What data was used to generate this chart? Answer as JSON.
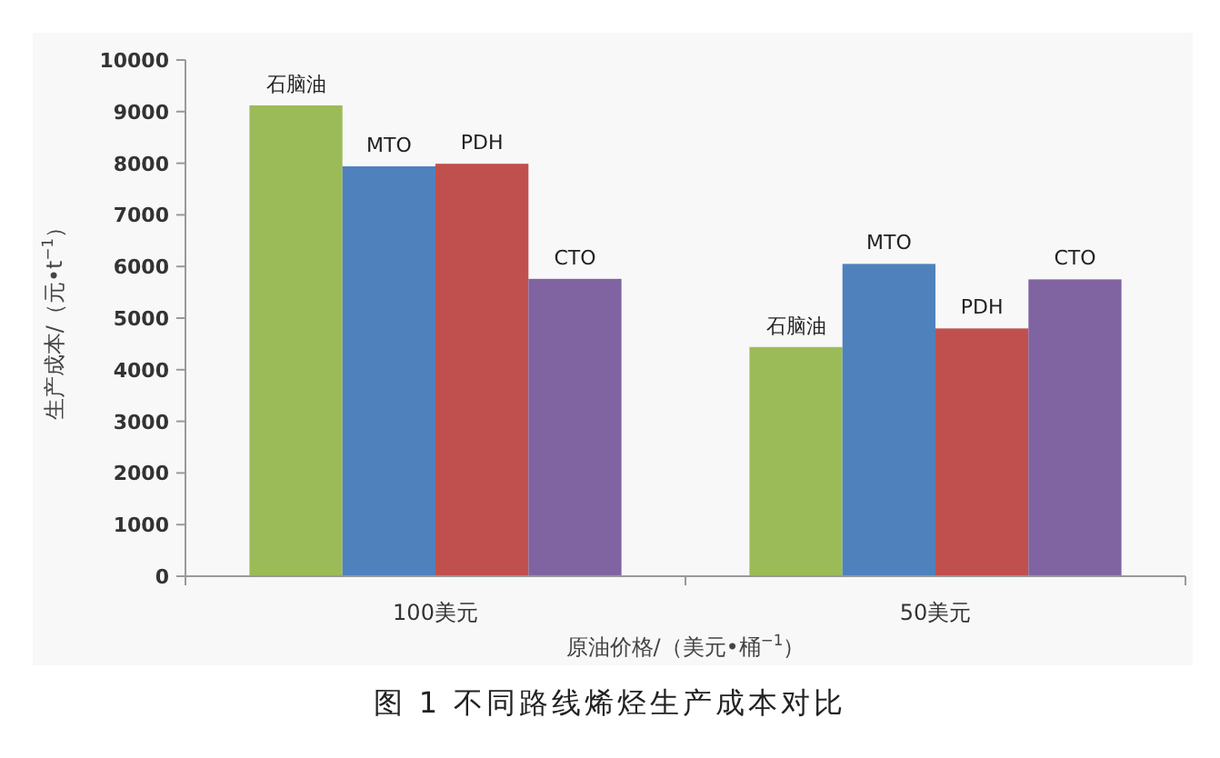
{
  "chart_data": {
    "type": "bar",
    "title": "图 1  不同路线烯烃生产成本对比",
    "xlabel": "原油价格/（美元•桶$^{−1}$）",
    "ylabel": "生产成本/（元•t$^{−1}$）",
    "categories": [
      "100美元",
      "50美元"
    ],
    "series": [
      {
        "name": "石脑油",
        "color": "#9bbb59",
        "values": [
          9120,
          4440
        ]
      },
      {
        "name": "MTO",
        "color": "#4f81bd",
        "values": [
          7940,
          6050
        ]
      },
      {
        "name": "PDH",
        "color": "#c0504d",
        "values": [
          7990,
          4800
        ]
      },
      {
        "name": "CTO",
        "color": "#8064a2",
        "values": [
          5760,
          5750
        ]
      }
    ],
    "ylim": [
      0,
      10000
    ],
    "yticks": [
      0,
      1000,
      2000,
      3000,
      4000,
      5000,
      6000,
      7000,
      8000,
      9000,
      10000
    ],
    "grid": false,
    "legend": false
  }
}
